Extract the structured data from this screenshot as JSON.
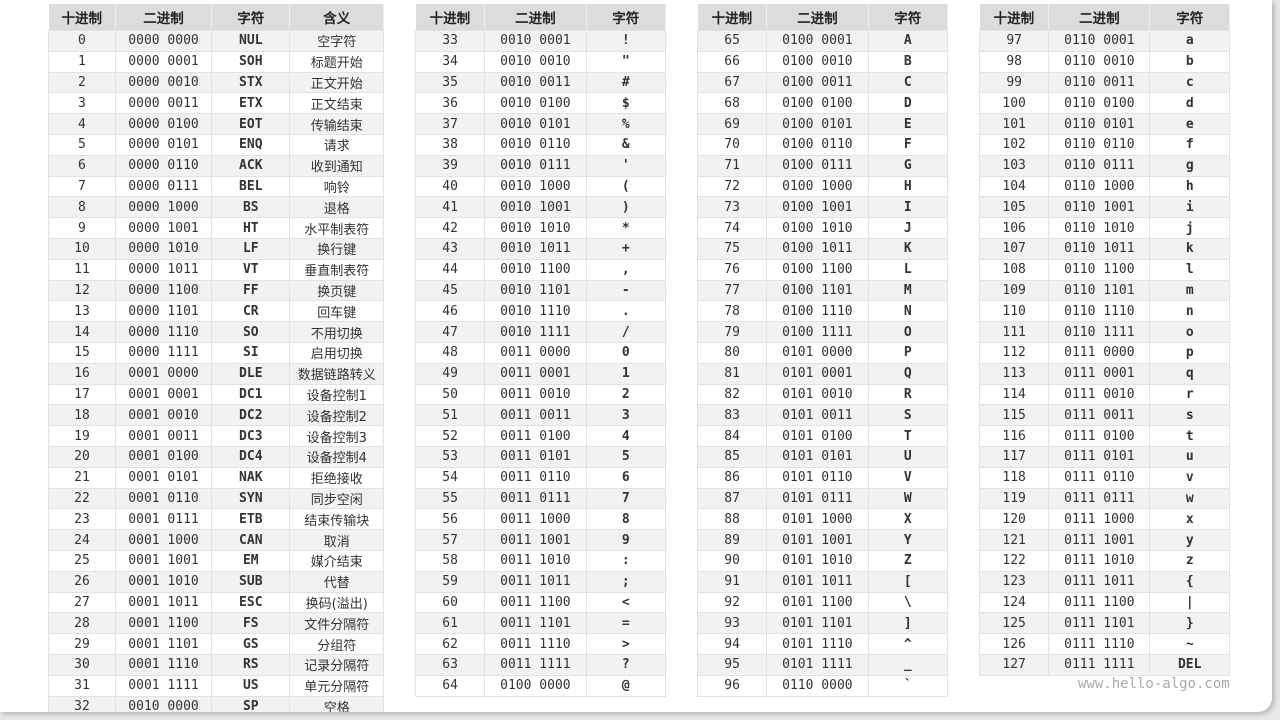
{
  "watermark": "www.hello-algo.com",
  "tables": [
    {
      "headers": [
        "十进制",
        "二进制",
        "字符",
        "含义"
      ],
      "rows": [
        [
          "0",
          "0000 0000",
          "NUL",
          "空字符"
        ],
        [
          "1",
          "0000 0001",
          "SOH",
          "标题开始"
        ],
        [
          "2",
          "0000 0010",
          "STX",
          "正文开始"
        ],
        [
          "3",
          "0000 0011",
          "ETX",
          "正文结束"
        ],
        [
          "4",
          "0000 0100",
          "EOT",
          "传输结束"
        ],
        [
          "5",
          "0000 0101",
          "ENQ",
          "请求"
        ],
        [
          "6",
          "0000 0110",
          "ACK",
          "收到通知"
        ],
        [
          "7",
          "0000 0111",
          "BEL",
          "响铃"
        ],
        [
          "8",
          "0000 1000",
          "BS",
          "退格"
        ],
        [
          "9",
          "0000 1001",
          "HT",
          "水平制表符"
        ],
        [
          "10",
          "0000 1010",
          "LF",
          "换行键"
        ],
        [
          "11",
          "0000 1011",
          "VT",
          "垂直制表符"
        ],
        [
          "12",
          "0000 1100",
          "FF",
          "换页键"
        ],
        [
          "13",
          "0000 1101",
          "CR",
          "回车键"
        ],
        [
          "14",
          "0000 1110",
          "SO",
          "不用切换"
        ],
        [
          "15",
          "0000 1111",
          "SI",
          "启用切换"
        ],
        [
          "16",
          "0001 0000",
          "DLE",
          "数据链路转义"
        ],
        [
          "17",
          "0001 0001",
          "DC1",
          "设备控制1"
        ],
        [
          "18",
          "0001 0010",
          "DC2",
          "设备控制2"
        ],
        [
          "19",
          "0001 0011",
          "DC3",
          "设备控制3"
        ],
        [
          "20",
          "0001 0100",
          "DC4",
          "设备控制4"
        ],
        [
          "21",
          "0001 0101",
          "NAK",
          "拒绝接收"
        ],
        [
          "22",
          "0001 0110",
          "SYN",
          "同步空闲"
        ],
        [
          "23",
          "0001 0111",
          "ETB",
          "结束传输块"
        ],
        [
          "24",
          "0001 1000",
          "CAN",
          "取消"
        ],
        [
          "25",
          "0001 1001",
          "EM",
          "媒介结束"
        ],
        [
          "26",
          "0001 1010",
          "SUB",
          "代替"
        ],
        [
          "27",
          "0001 1011",
          "ESC",
          "换码(溢出)"
        ],
        [
          "28",
          "0001 1100",
          "FS",
          "文件分隔符"
        ],
        [
          "29",
          "0001 1101",
          "GS",
          "分组符"
        ],
        [
          "30",
          "0001 1110",
          "RS",
          "记录分隔符"
        ],
        [
          "31",
          "0001 1111",
          "US",
          "单元分隔符"
        ],
        [
          "32",
          "0010 0000",
          "SP",
          "空格"
        ]
      ]
    },
    {
      "headers": [
        "十进制",
        "二进制",
        "字符"
      ],
      "rows": [
        [
          "33",
          "0010 0001",
          "!"
        ],
        [
          "34",
          "0010 0010",
          "\""
        ],
        [
          "35",
          "0010 0011",
          "#"
        ],
        [
          "36",
          "0010 0100",
          "$"
        ],
        [
          "37",
          "0010 0101",
          "%"
        ],
        [
          "38",
          "0010 0110",
          "&"
        ],
        [
          "39",
          "0010 0111",
          "'"
        ],
        [
          "40",
          "0010 1000",
          "("
        ],
        [
          "41",
          "0010 1001",
          ")"
        ],
        [
          "42",
          "0010 1010",
          "*"
        ],
        [
          "43",
          "0010 1011",
          "+"
        ],
        [
          "44",
          "0010 1100",
          ","
        ],
        [
          "45",
          "0010 1101",
          "-"
        ],
        [
          "46",
          "0010 1110",
          "."
        ],
        [
          "47",
          "0010 1111",
          "/"
        ],
        [
          "48",
          "0011 0000",
          "0"
        ],
        [
          "49",
          "0011 0001",
          "1"
        ],
        [
          "50",
          "0011 0010",
          "2"
        ],
        [
          "51",
          "0011 0011",
          "3"
        ],
        [
          "52",
          "0011 0100",
          "4"
        ],
        [
          "53",
          "0011 0101",
          "5"
        ],
        [
          "54",
          "0011 0110",
          "6"
        ],
        [
          "55",
          "0011 0111",
          "7"
        ],
        [
          "56",
          "0011 1000",
          "8"
        ],
        [
          "57",
          "0011 1001",
          "9"
        ],
        [
          "58",
          "0011 1010",
          ":"
        ],
        [
          "59",
          "0011 1011",
          ";"
        ],
        [
          "60",
          "0011 1100",
          "<"
        ],
        [
          "61",
          "0011 1101",
          "="
        ],
        [
          "62",
          "0011 1110",
          ">"
        ],
        [
          "63",
          "0011 1111",
          "?"
        ],
        [
          "64",
          "0100 0000",
          "@"
        ]
      ]
    },
    {
      "headers": [
        "十进制",
        "二进制",
        "字符"
      ],
      "rows": [
        [
          "65",
          "0100 0001",
          "A"
        ],
        [
          "66",
          "0100 0010",
          "B"
        ],
        [
          "67",
          "0100 0011",
          "C"
        ],
        [
          "68",
          "0100 0100",
          "D"
        ],
        [
          "69",
          "0100 0101",
          "E"
        ],
        [
          "70",
          "0100 0110",
          "F"
        ],
        [
          "71",
          "0100 0111",
          "G"
        ],
        [
          "72",
          "0100 1000",
          "H"
        ],
        [
          "73",
          "0100 1001",
          "I"
        ],
        [
          "74",
          "0100 1010",
          "J"
        ],
        [
          "75",
          "0100 1011",
          "K"
        ],
        [
          "76",
          "0100 1100",
          "L"
        ],
        [
          "77",
          "0100 1101",
          "M"
        ],
        [
          "78",
          "0100 1110",
          "N"
        ],
        [
          "79",
          "0100 1111",
          "O"
        ],
        [
          "80",
          "0101 0000",
          "P"
        ],
        [
          "81",
          "0101 0001",
          "Q"
        ],
        [
          "82",
          "0101 0010",
          "R"
        ],
        [
          "83",
          "0101 0011",
          "S"
        ],
        [
          "84",
          "0101 0100",
          "T"
        ],
        [
          "85",
          "0101 0101",
          "U"
        ],
        [
          "86",
          "0101 0110",
          "V"
        ],
        [
          "87",
          "0101 0111",
          "W"
        ],
        [
          "88",
          "0101 1000",
          "X"
        ],
        [
          "89",
          "0101 1001",
          "Y"
        ],
        [
          "90",
          "0101 1010",
          "Z"
        ],
        [
          "91",
          "0101 1011",
          "["
        ],
        [
          "92",
          "0101 1100",
          "\\"
        ],
        [
          "93",
          "0101 1101",
          "]"
        ],
        [
          "94",
          "0101 1110",
          "^"
        ],
        [
          "95",
          "0101 1111",
          "_"
        ],
        [
          "96",
          "0110 0000",
          "`"
        ]
      ]
    },
    {
      "headers": [
        "十进制",
        "二进制",
        "字符"
      ],
      "rows": [
        [
          "97",
          "0110 0001",
          "a"
        ],
        [
          "98",
          "0110 0010",
          "b"
        ],
        [
          "99",
          "0110 0011",
          "c"
        ],
        [
          "100",
          "0110 0100",
          "d"
        ],
        [
          "101",
          "0110 0101",
          "e"
        ],
        [
          "102",
          "0110 0110",
          "f"
        ],
        [
          "103",
          "0110 0111",
          "g"
        ],
        [
          "104",
          "0110 1000",
          "h"
        ],
        [
          "105",
          "0110 1001",
          "i"
        ],
        [
          "106",
          "0110 1010",
          "j"
        ],
        [
          "107",
          "0110 1011",
          "k"
        ],
        [
          "108",
          "0110 1100",
          "l"
        ],
        [
          "109",
          "0110 1101",
          "m"
        ],
        [
          "110",
          "0110 1110",
          "n"
        ],
        [
          "111",
          "0110 1111",
          "o"
        ],
        [
          "112",
          "0111 0000",
          "p"
        ],
        [
          "113",
          "0111 0001",
          "q"
        ],
        [
          "114",
          "0111 0010",
          "r"
        ],
        [
          "115",
          "0111 0011",
          "s"
        ],
        [
          "116",
          "0111 0100",
          "t"
        ],
        [
          "117",
          "0111 0101",
          "u"
        ],
        [
          "118",
          "0111 0110",
          "v"
        ],
        [
          "119",
          "0111 0111",
          "w"
        ],
        [
          "120",
          "0111 1000",
          "x"
        ],
        [
          "121",
          "0111 1001",
          "y"
        ],
        [
          "122",
          "0111 1010",
          "z"
        ],
        [
          "123",
          "0111 1011",
          "{"
        ],
        [
          "124",
          "0111 1100",
          "|"
        ],
        [
          "125",
          "0111 1101",
          "}"
        ],
        [
          "126",
          "0111 1110",
          "~"
        ],
        [
          "127",
          "0111 1111",
          "DEL"
        ]
      ]
    }
  ]
}
